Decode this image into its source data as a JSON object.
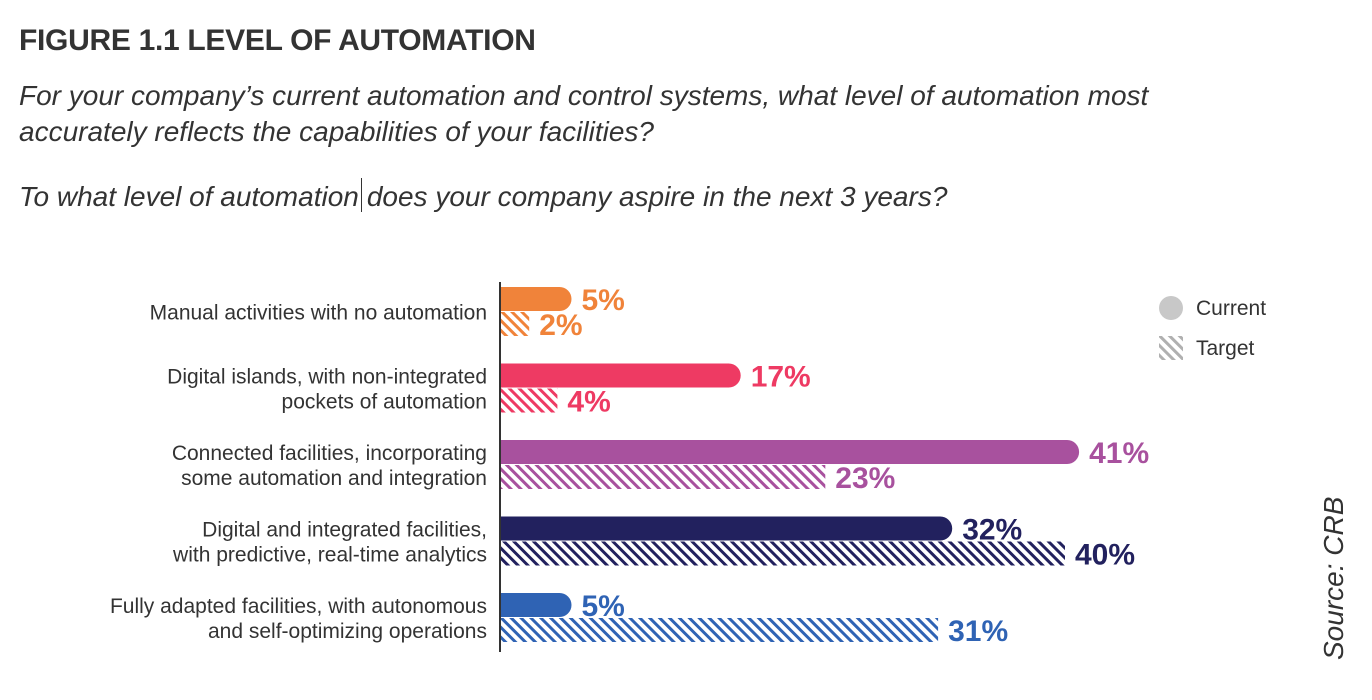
{
  "header": {
    "title": "FIGURE 1.1 LEVEL OF AUTOMATION",
    "question1_line1": "For your company’s current automation and control systems, what level of automation most",
    "question1_line2": "accurately reflects the capabilities of your facilities?",
    "question2_part1": "To what level of automation",
    "question2_part2": "does your company aspire in the next 3 years?"
  },
  "source": "Source: CRB",
  "chart_data": {
    "type": "bar",
    "orientation": "horizontal",
    "title": "FIGURE 1.1 LEVEL OF AUTOMATION",
    "value_suffix": "%",
    "xlim": [
      0,
      41
    ],
    "categories": [
      {
        "label_lines": [
          "Manual activities with no automation"
        ],
        "color": "#f0833a"
      },
      {
        "label_lines": [
          "Digital islands, with non-integrated",
          "pockets of automation"
        ],
        "color": "#ee3a63"
      },
      {
        "label_lines": [
          "Connected facilities, incorporating",
          "some automation and integration"
        ],
        "color": "#a8519e"
      },
      {
        "label_lines": [
          "Digital and integrated facilities,",
          "with predictive, real-time analytics"
        ],
        "color": "#22215e"
      },
      {
        "label_lines": [
          "Fully adapted facilities, with autonomous",
          "and self-optimizing operations"
        ],
        "color": "#2f63b4"
      }
    ],
    "series": [
      {
        "name": "Current",
        "style": "solid",
        "values": [
          5,
          17,
          41,
          32,
          5
        ]
      },
      {
        "name": "Target",
        "style": "hatched",
        "values": [
          2,
          4,
          23,
          40,
          31
        ]
      }
    ],
    "legend": {
      "position": "top-right",
      "items": [
        {
          "label": "Current",
          "color": "#c8c8c8",
          "style": "solid"
        },
        {
          "label": "Target",
          "color": "#b0b0b0",
          "style": "hatched"
        }
      ]
    }
  }
}
